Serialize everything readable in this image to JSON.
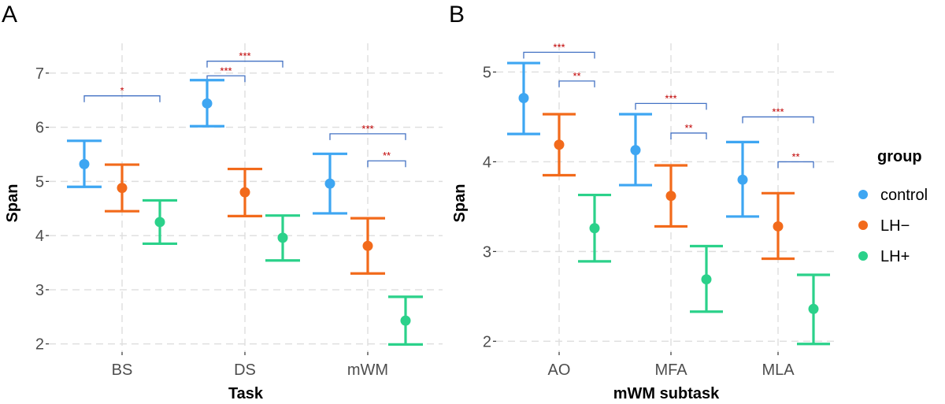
{
  "legend": {
    "title": "group",
    "items": [
      {
        "label": "control",
        "color": "#3ea6f2"
      },
      {
        "label": "LH−",
        "color": "#f26a1b"
      },
      {
        "label": "LH+",
        "color": "#2bd18a"
      }
    ]
  },
  "chart_data": [
    {
      "panel": "A",
      "type": "errorbar",
      "xlabel": "Task",
      "ylabel": "Span",
      "ylim": [
        1.85,
        7.55
      ],
      "yticks": [
        2,
        3,
        4,
        5,
        6,
        7
      ],
      "categories": [
        "BS",
        "DS",
        "mWM"
      ],
      "series": [
        {
          "name": "control",
          "mean": [
            5.32,
            6.44,
            4.96
          ],
          "lower": [
            4.9,
            6.02,
            4.41
          ],
          "upper": [
            5.75,
            6.87,
            5.51
          ]
        },
        {
          "name": "LH−",
          "mean": [
            4.88,
            4.8,
            3.81
          ],
          "lower": [
            4.45,
            4.36,
            3.3
          ],
          "upper": [
            5.31,
            5.23,
            4.32
          ]
        },
        {
          "name": "LH+",
          "mean": [
            4.25,
            3.96,
            2.43
          ],
          "lower": [
            3.85,
            3.54,
            1.99
          ],
          "upper": [
            4.65,
            4.37,
            2.87
          ]
        }
      ],
      "significance": [
        {
          "category": "BS",
          "from": "control",
          "to": "LH+",
          "y": 6.58,
          "label": "*"
        },
        {
          "category": "DS",
          "from": "control",
          "to": "LH−",
          "y": 6.95,
          "label": "***"
        },
        {
          "category": "DS",
          "from": "control",
          "to": "LH+",
          "y": 7.22,
          "label": "***"
        },
        {
          "category": "mWM",
          "from": "control",
          "to": "LH+",
          "y": 5.88,
          "label": "***"
        },
        {
          "category": "mWM",
          "from": "LH−",
          "to": "LH+",
          "y": 5.38,
          "label": "**"
        }
      ]
    },
    {
      "panel": "B",
      "type": "errorbar",
      "xlabel": "mWM subtask",
      "ylabel": "Span",
      "ylim": [
        1.88,
        5.32
      ],
      "yticks": [
        2,
        3,
        4,
        5
      ],
      "categories": [
        "AO",
        "MFA",
        "MLA"
      ],
      "series": [
        {
          "name": "control",
          "mean": [
            4.71,
            4.13,
            3.8
          ],
          "lower": [
            4.31,
            3.74,
            3.39
          ],
          "upper": [
            5.1,
            4.53,
            4.22
          ]
        },
        {
          "name": "LH−",
          "mean": [
            4.19,
            3.62,
            3.28
          ],
          "lower": [
            3.85,
            3.28,
            2.92
          ],
          "upper": [
            4.53,
            3.96,
            3.65
          ]
        },
        {
          "name": "LH+",
          "mean": [
            3.26,
            2.69,
            2.36
          ],
          "lower": [
            2.89,
            2.33,
            1.97
          ],
          "upper": [
            3.63,
            3.06,
            2.74
          ]
        }
      ],
      "significance": [
        {
          "category": "AO",
          "from": "control",
          "to": "LH+",
          "y": 5.22,
          "label": "***"
        },
        {
          "category": "AO",
          "from": "LH−",
          "to": "LH+",
          "y": 4.9,
          "label": "**"
        },
        {
          "category": "MFA",
          "from": "control",
          "to": "LH+",
          "y": 4.65,
          "label": "***"
        },
        {
          "category": "MFA",
          "from": "LH−",
          "to": "LH+",
          "y": 4.32,
          "label": "**"
        },
        {
          "category": "MLA",
          "from": "control",
          "to": "LH+",
          "y": 4.5,
          "label": "***"
        },
        {
          "category": "MLA",
          "from": "LH−",
          "to": "LH+",
          "y": 4.0,
          "label": "**"
        }
      ]
    }
  ]
}
